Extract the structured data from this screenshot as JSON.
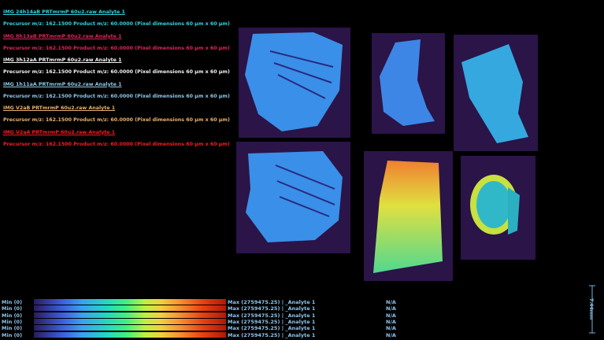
{
  "images": [
    {
      "title": "IMG 24h14aB PRTmrmP 60u2.raw Analyte 1",
      "info": "Precursor m/z: 162.1500 Product m/z: 60.0000 (Pixel dimensions 60 µm x 60 µm)",
      "color": "#2fd3e0"
    },
    {
      "title": "IMG 8h13aB PRTmrmP 60u2.raw Analyte 1",
      "info": "Precursor m/z: 162.1500 Product m/z: 60.0000 (Pixel dimensions 60 µm x 60 µm)",
      "color": "#e0245c"
    },
    {
      "title": "IMG 3h12aA PRTmrmP 60u2.raw Analyte 1",
      "info": "Precursor m/z: 162.1500 Product m/z: 60.0000 (Pixel dimensions 60 µm x 60 µm)",
      "color": "#f2f2f2"
    },
    {
      "title": "IMG 1h11aA PRTmrmP 60u2.raw Analyte 1",
      "info": "Precursor m/z: 162.1500 Product m/z: 60.0000 (Pixel dimensions 60 µm x 60 µm)",
      "color": "#8ec8e8"
    },
    {
      "title": "IMG V2aB PRTmrmP 60u2.raw Analyte 1",
      "info": "Precursor m/z: 162.1500 Product m/z: 60.0000 (Pixel dimensions 60 µm x 60 µm)",
      "color": "#e8b070"
    },
    {
      "title": "IMG V2aA PRTmrmP 60u2.raw Analyte 1",
      "info": "Precursor m/z: 162.1500 Product m/z: 60.0000 (Pixel dimensions 60 µm x 60 µm)",
      "color": "#ff1a1a"
    }
  ],
  "legend": [
    {
      "min": "Min (0)",
      "max": "Max (2759475.25) | _Analyte 1",
      "status": "N/A"
    },
    {
      "min": "Min (0)",
      "max": "Max (2759475.25) | _Analyte 1",
      "status": "N/A"
    },
    {
      "min": "Min (0)",
      "max": "Max (2759475.25) | _Analyte 1",
      "status": "N/A"
    },
    {
      "min": "Min (0)",
      "max": "Max (2759475.25) | _Analyte 1",
      "status": "N/A"
    },
    {
      "min": "Min (0)",
      "max": "Max (2759475.25) | _Analyte 1",
      "status": "N/A"
    },
    {
      "min": "Min (0)",
      "max": "Max (2759475.25) | _Analyte 1",
      "status": "N/A"
    }
  ],
  "scale_bar": {
    "label": "7.44mm"
  }
}
